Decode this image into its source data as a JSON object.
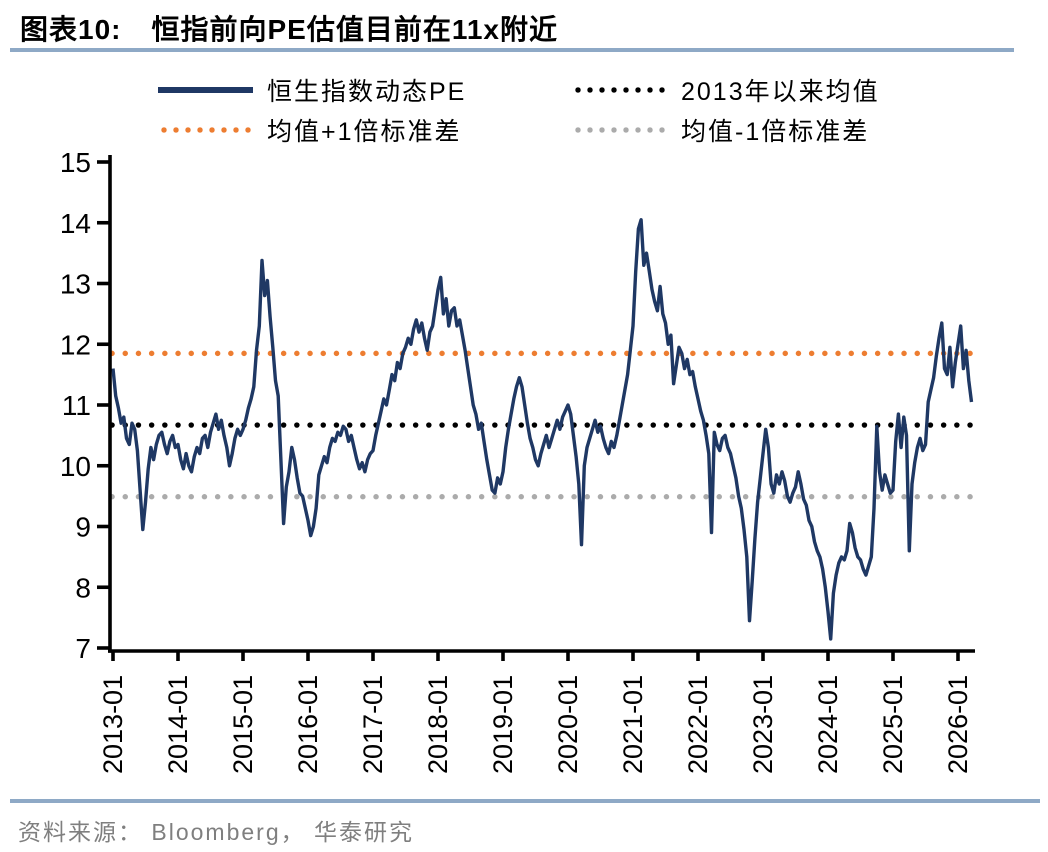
{
  "figure": {
    "label": "图表10:",
    "title": "恒指前向PE估值目前在11x附近"
  },
  "legend": [
    {
      "label": "恒生指数动态PE",
      "color": "#1F3864",
      "style": "solid"
    },
    {
      "label": "2013年以来均值",
      "color": "#000000",
      "style": "dotted"
    },
    {
      "label": "均值+1倍标准差",
      "color": "#ED7D31",
      "style": "dotted"
    },
    {
      "label": "均值-1倍标准差",
      "color": "#ABABAB",
      "style": "dotted"
    }
  ],
  "source": {
    "text": "资料来源： Bloomberg， 华泰研究"
  },
  "chart_data": {
    "type": "line",
    "title": "恒指前向PE估值目前在11x附近",
    "xlabel": "",
    "ylabel": "",
    "ylim": [
      7,
      15
    ],
    "y_ticks": [
      7,
      8,
      9,
      10,
      11,
      12,
      13,
      14,
      15
    ],
    "x_ticks": [
      "2013-01",
      "2014-01",
      "2015-01",
      "2016-01",
      "2017-01",
      "2018-01",
      "2019-01",
      "2020-01",
      "2021-01",
      "2022-01",
      "2023-01",
      "2024-01",
      "2025-01",
      "2026-01"
    ],
    "grid": false,
    "legend_position": "top",
    "reference_lines": [
      {
        "name": "2013年以来均值",
        "value": 10.67,
        "color": "#000000",
        "style": "dotted"
      },
      {
        "name": "均值+1倍标准差",
        "value": 11.85,
        "color": "#ED7D31",
        "style": "dotted"
      },
      {
        "name": "均值-1倍标准差",
        "value": 9.49,
        "color": "#ABABAB",
        "style": "dotted"
      }
    ],
    "series": [
      {
        "name": "恒生指数动态PE",
        "color": "#1F3864",
        "style": "solid",
        "start": "2013-01",
        "points_per_month": 2,
        "values": [
          11.6,
          11.15,
          10.95,
          10.7,
          10.8,
          10.45,
          10.35,
          10.7,
          10.6,
          10.25,
          9.6,
          8.95,
          9.4,
          9.95,
          10.3,
          10.1,
          10.35,
          10.5,
          10.55,
          10.35,
          10.2,
          10.4,
          10.5,
          10.3,
          10.35,
          10.1,
          9.95,
          10.2,
          10.0,
          9.9,
          10.15,
          10.3,
          10.2,
          10.45,
          10.5,
          10.3,
          10.55,
          10.7,
          10.85,
          10.6,
          10.75,
          10.5,
          10.3,
          10.0,
          10.2,
          10.45,
          10.6,
          10.5,
          10.6,
          10.75,
          10.95,
          11.1,
          11.3,
          11.9,
          12.3,
          13.38,
          12.8,
          13.05,
          12.45,
          11.95,
          11.4,
          11.15,
          10.1,
          9.05,
          9.65,
          9.9,
          10.3,
          10.1,
          9.8,
          9.55,
          9.5,
          9.3,
          9.1,
          8.85,
          9.0,
          9.3,
          9.85,
          10.0,
          10.15,
          10.05,
          10.3,
          10.45,
          10.4,
          10.55,
          10.5,
          10.65,
          10.6,
          10.4,
          10.5,
          10.3,
          10.1,
          9.95,
          10.05,
          9.9,
          10.1,
          10.2,
          10.25,
          10.5,
          10.7,
          10.9,
          11.1,
          11.0,
          11.25,
          11.5,
          11.4,
          11.7,
          11.6,
          11.85,
          11.95,
          12.1,
          12.0,
          12.25,
          12.4,
          12.2,
          12.35,
          12.1,
          11.9,
          12.2,
          12.3,
          12.6,
          12.9,
          13.1,
          12.5,
          12.75,
          12.3,
          12.55,
          12.6,
          12.3,
          12.4,
          12.15,
          11.9,
          11.6,
          11.3,
          11.0,
          10.85,
          10.6,
          10.7,
          10.4,
          10.1,
          9.85,
          9.6,
          9.55,
          9.8,
          9.7,
          9.9,
          10.3,
          10.6,
          10.85,
          11.1,
          11.3,
          11.45,
          11.3,
          11.0,
          10.7,
          10.45,
          10.3,
          10.1,
          10.0,
          10.2,
          10.35,
          10.5,
          10.3,
          10.45,
          10.6,
          10.75,
          10.6,
          10.8,
          10.9,
          11.0,
          10.85,
          10.5,
          10.15,
          9.7,
          8.7,
          10.0,
          10.3,
          10.45,
          10.6,
          10.75,
          10.55,
          10.65,
          10.45,
          10.3,
          10.2,
          10.4,
          10.3,
          10.5,
          10.75,
          11.0,
          11.25,
          11.5,
          11.9,
          12.3,
          13.2,
          13.9,
          14.05,
          13.3,
          13.5,
          13.2,
          12.9,
          12.7,
          12.55,
          12.95,
          12.5,
          12.35,
          12.0,
          12.15,
          11.35,
          11.65,
          11.95,
          11.85,
          11.6,
          11.75,
          11.5,
          11.55,
          11.3,
          11.1,
          10.9,
          10.75,
          10.5,
          10.2,
          8.9,
          10.55,
          10.35,
          10.25,
          10.45,
          10.5,
          10.3,
          10.2,
          10.0,
          9.8,
          9.5,
          9.3,
          8.95,
          8.5,
          7.45,
          8.1,
          8.8,
          9.4,
          9.8,
          10.2,
          10.6,
          10.3,
          9.7,
          9.55,
          9.85,
          9.7,
          9.9,
          9.75,
          9.5,
          9.4,
          9.55,
          9.65,
          9.9,
          9.7,
          9.45,
          9.35,
          9.1,
          9.0,
          8.75,
          8.6,
          8.5,
          8.3,
          8.0,
          7.6,
          7.15,
          7.9,
          8.2,
          8.4,
          8.5,
          8.45,
          8.6,
          9.05,
          8.9,
          8.65,
          8.5,
          8.45,
          8.3,
          8.2,
          8.35,
          8.5,
          9.3,
          10.65,
          9.9,
          9.6,
          9.85,
          9.7,
          9.55,
          9.6,
          10.4,
          10.85,
          10.3,
          10.8,
          10.5,
          8.6,
          9.7,
          10.05,
          10.3,
          10.45,
          10.25,
          10.35,
          11.05,
          11.25,
          11.45,
          11.8,
          12.1,
          12.35,
          11.6,
          11.5,
          11.95,
          11.3,
          11.7,
          12.0,
          12.3,
          11.6,
          11.9,
          11.4,
          11.05
        ]
      }
    ]
  }
}
